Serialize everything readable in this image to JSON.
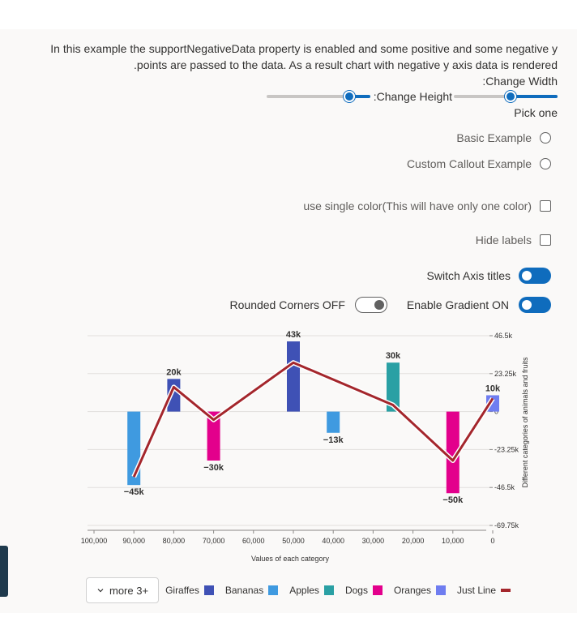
{
  "description": {
    "line1": "In this example the supportNegativeData property is enabled and some positive and some negative y",
    "line2": ".points are passed to the data. As a result chart with negative y axis data is rendered",
    "change_width": ":Change Width"
  },
  "sliders": {
    "change_height_label": ":Change Height",
    "width_value": 0.55,
    "height_value": 0.8
  },
  "pick_one": "Pick one",
  "options": {
    "basic_example": "Basic Example",
    "custom_callout_example": "Custom Callout Example"
  },
  "checkboxes": {
    "single_color": "use single color(This will have only one color)",
    "hide_labels": "Hide labels"
  },
  "toggles": {
    "switch_axis_titles": "Switch Axis titles",
    "rounded_corners": "Rounded Corners OFF",
    "enable_gradient": "Enable Gradient ON"
  },
  "legend": {
    "more_label": "more 3+"
  },
  "colors": {
    "accent": "#0f6cbd",
    "line": "#a4262c"
  },
  "chart_data": {
    "type": "bar",
    "xlabel": "Values of each category",
    "ylabel": "Different categories of animals and fruits",
    "x_ticks": [
      "100,000",
      "90,000",
      "80,000",
      "70,000",
      "60,000",
      "50,000",
      "40,000",
      "30,000",
      "20,000",
      "10,000",
      "0"
    ],
    "xlim": [
      100000,
      0
    ],
    "y_ticks": [
      "46.5k",
      "23.25k",
      "0",
      "-23.25k",
      "-46.5k",
      "-69.75k"
    ],
    "ylim": [
      -69750,
      46500
    ],
    "y_axis_position": "right",
    "grid": true,
    "legend_position": "bottom-left",
    "bars": [
      {
        "x": 90000,
        "y": -45000,
        "label": "−45k",
        "series": "Giraffes",
        "color": "#3f9ae0"
      },
      {
        "x": 80000,
        "y": 20000,
        "label": "20k",
        "series": "Bananas",
        "color": "#3f51b5"
      },
      {
        "x": 70000,
        "y": -30000,
        "label": "−30k",
        "series": "Dogs",
        "color": "#e3008c"
      },
      {
        "x": 50000,
        "y": 43000,
        "label": "43k",
        "series": "Bananas",
        "color": "#3f51b5"
      },
      {
        "x": 40000,
        "y": -13000,
        "label": "−13k",
        "series": "Giraffes",
        "color": "#3f9ae0"
      },
      {
        "x": 25000,
        "y": 30000,
        "label": "30k",
        "series": "Apples",
        "color": "#2aa0a4"
      },
      {
        "x": 10000,
        "y": -50000,
        "label": "−50k",
        "series": "Dogs",
        "color": "#e3008c"
      },
      {
        "x": 0,
        "y": 10000,
        "label": "10k",
        "series": "Oranges",
        "color": "#6f7df0"
      }
    ],
    "line": {
      "name": "Just Line",
      "color": "#a4262c",
      "points": [
        {
          "x": 90000,
          "y": -40000
        },
        {
          "x": 80000,
          "y": 15000
        },
        {
          "x": 70000,
          "y": -5000
        },
        {
          "x": 50000,
          "y": 30000
        },
        {
          "x": 25000,
          "y": 4000
        },
        {
          "x": 10000,
          "y": -30000
        },
        {
          "x": 0,
          "y": 8000
        }
      ]
    },
    "legend": [
      {
        "name": "Giraffes",
        "color": "#3f51b5",
        "kind": "bar"
      },
      {
        "name": "Bananas",
        "color": "#3f9ae0",
        "kind": "bar"
      },
      {
        "name": "Apples",
        "color": "#2aa0a4",
        "kind": "bar"
      },
      {
        "name": "Dogs",
        "color": "#e3008c",
        "kind": "bar"
      },
      {
        "name": "Oranges",
        "color": "#6f7df0",
        "kind": "bar"
      },
      {
        "name": "Just Line",
        "color": "#a4262c",
        "kind": "line"
      }
    ]
  }
}
